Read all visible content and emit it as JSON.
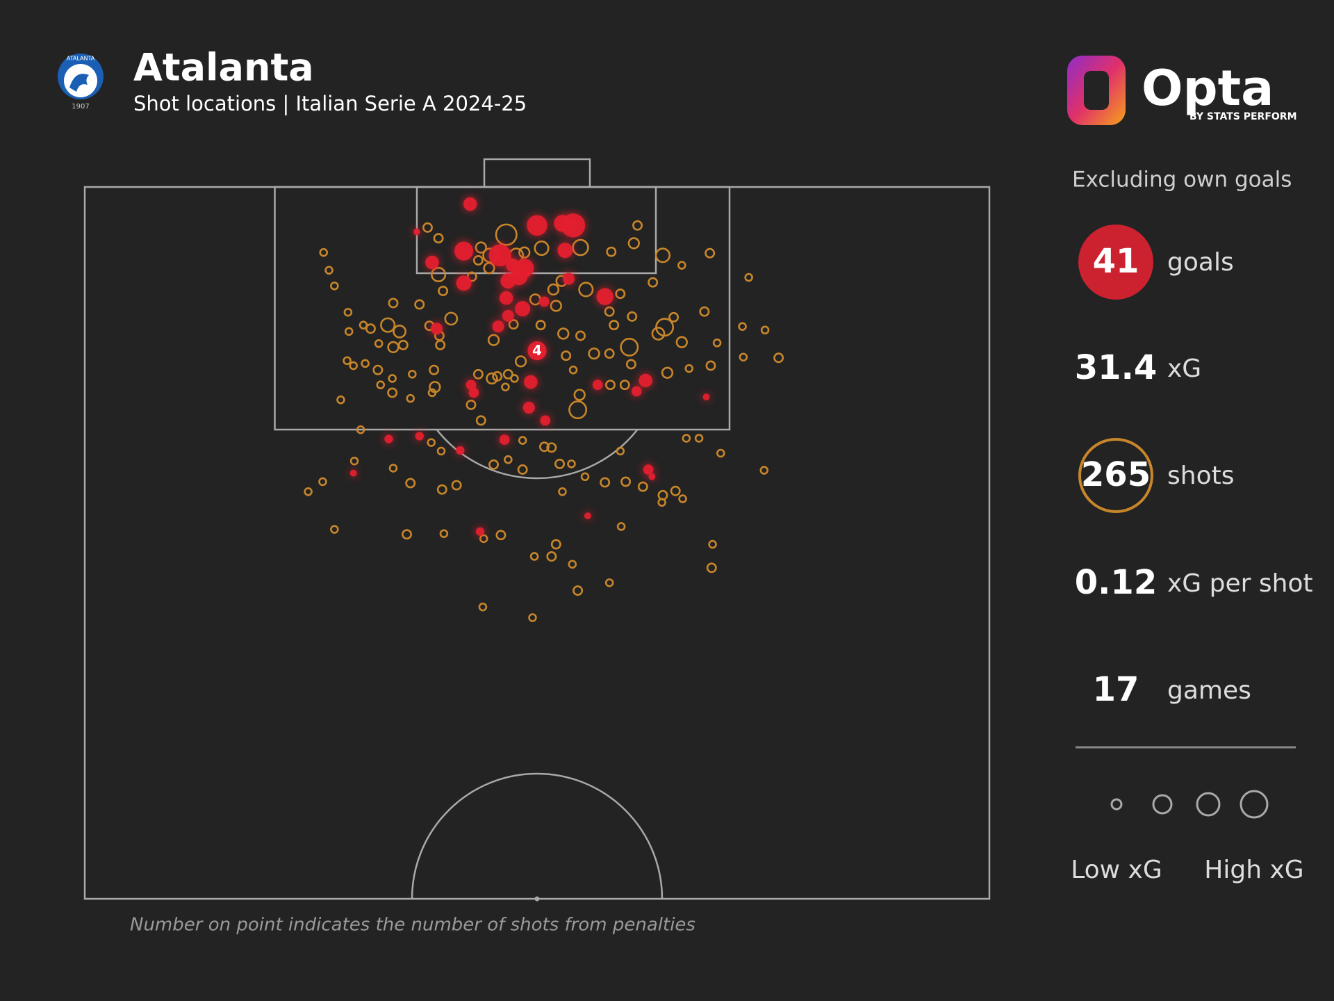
{
  "header": {
    "title": "Atalanta",
    "subtitle": "Shot locations | Italian Serie A 2024-25"
  },
  "badge": {
    "name": "ATALANTA",
    "year": "1907"
  },
  "brand": {
    "name": "Opta",
    "tagline": "BY STATS PERFORM"
  },
  "stats": {
    "note": "Excluding own goals",
    "items": [
      {
        "value": 41,
        "label": "goals"
      },
      {
        "value": 31.4,
        "label": "xG"
      },
      {
        "value": 265,
        "label": "shots"
      },
      {
        "value": 0.12,
        "label": "xG per shot"
      },
      {
        "value": 17,
        "label": "games"
      }
    ]
  },
  "legend": {
    "low": "Low xG",
    "high": "High xG"
  },
  "footnote": "Number on point indicates the number of shots from penalties",
  "chart_data": {
    "type": "scatter",
    "xlim": [
      0,
      100
    ],
    "ylim": [
      0,
      100
    ],
    "series": [
      {
        "color": "#c8862a",
        "x": [
          26.4,
          27.0,
          27.6,
          37.9,
          39.1,
          61.1,
          60.7,
          58.2,
          46.6,
          43.8,
          44.8,
          47.7,
          48.6,
          50.5,
          54.8,
          63.9,
          66.0,
          69.1,
          73.4,
          62.8,
          39.1,
          39.6,
          42.8,
          43.5,
          44.7,
          49.8,
          51.8,
          55.4,
          52.7,
          59.2,
          52.1,
          34.1,
          37.0,
          40.5,
          29.1,
          30.8,
          29.2,
          31.6,
          33.5,
          34.8,
          32.5,
          34.1,
          35.2,
          38.1,
          39.3,
          39.2,
          45.2,
          47.4,
          50.4,
          52.9,
          54.8,
          58.0,
          60.5,
          58.5,
          63.4,
          64.1,
          65.1,
          66.0,
          60.2,
          60.4,
          58.0,
          56.3,
          53.2,
          48.2,
          46.8,
          46.5,
          45.0,
          43.5,
          45.6,
          47.5,
          54.0,
          54.7,
          54.5,
          58.1,
          59.7,
          64.4,
          66.8,
          69.2,
          68.5,
          69.9,
          72.7,
          75.2,
          72.8,
          76.7,
          29.0,
          29.7,
          31.0,
          32.4,
          32.7,
          34.0,
          34.0,
          36.2,
          38.6,
          38.7,
          38.4,
          36.0,
          28.3,
          30.5,
          42.7,
          43.8,
          48.4,
          50.8,
          51.6,
          45.2,
          46.8,
          48.4,
          39.4,
          38.3,
          34.1,
          36.0,
          39.5,
          41.1,
          29.8,
          26.3,
          24.7,
          52.5,
          53.8,
          52.8,
          55.3,
          57.5,
          59.8,
          61.7,
          63.9,
          65.3,
          63.8,
          66.1,
          66.5,
          67.9,
          70.3,
          75.1,
          59.2,
          27.6,
          35.6,
          39.7,
          44.1,
          46.0,
          52.1,
          51.6,
          49.7,
          53.9,
          59.3,
          69.4,
          69.3,
          58.0,
          54.5,
          44.0,
          49.5
        ],
        "values": [
          9.2,
          11.7,
          13.9,
          5.7,
          7.2,
          5.4,
          7.9,
          9.1,
          6.7,
          8.5,
          9.6,
          9.6,
          9.2,
          8.6,
          8.5,
          9.6,
          11.0,
          9.3,
          12.7,
          13.4,
          12.3,
          14.6,
          12.6,
          10.3,
          11.4,
          15.8,
          14.4,
          14.4,
          13.2,
          15.0,
          16.7,
          16.3,
          16.5,
          18.5,
          17.6,
          19.4,
          20.3,
          19.9,
          19.4,
          20.3,
          22.0,
          22.5,
          22.2,
          19.5,
          22.2,
          20.9,
          21.5,
          19.3,
          19.4,
          20.6,
          20.9,
          17.5,
          18.2,
          19.4,
          20.6,
          19.7,
          18.3,
          21.8,
          22.5,
          24.9,
          23.4,
          23.4,
          23.7,
          24.5,
          26.3,
          28.1,
          26.9,
          26.3,
          26.6,
          26.9,
          25.7,
          29.2,
          31.3,
          27.8,
          27.8,
          26.1,
          25.5,
          25.1,
          17.5,
          21.9,
          19.6,
          20.1,
          23.9,
          24.0,
          24.4,
          25.1,
          24.8,
          25.7,
          27.8,
          26.9,
          28.9,
          26.3,
          25.7,
          28.1,
          28.9,
          29.7,
          29.9,
          34.1,
          30.6,
          32.8,
          35.6,
          36.5,
          36.6,
          39.0,
          38.3,
          39.7,
          37.1,
          35.9,
          39.5,
          41.6,
          42.5,
          41.9,
          38.5,
          41.4,
          42.8,
          38.9,
          38.9,
          42.8,
          40.7,
          41.5,
          41.4,
          42.1,
          43.3,
          42.7,
          44.3,
          43.8,
          35.3,
          35.3,
          37.4,
          39.8,
          37.1,
          48.1,
          48.8,
          48.7,
          49.4,
          48.9,
          50.2,
          51.9,
          51.9,
          53.0,
          47.7,
          50.2,
          53.5,
          55.6,
          56.7,
          59.0,
          60.5
        ],
        "sizes": [
          0.04,
          0.04,
          0.04,
          0.11,
          0.11,
          0.11,
          0.18,
          0.11,
          0.61,
          0.18,
          0.32,
          0.32,
          0.18,
          0.32,
          0.39,
          0.32,
          0.04,
          0.11,
          0.04,
          0.11,
          0.32,
          0.11,
          0.11,
          0.11,
          0.18,
          0.18,
          0.18,
          0.32,
          0.18,
          0.11,
          0.18,
          0.11,
          0.11,
          0.25,
          0.04,
          0.04,
          0.04,
          0.11,
          0.32,
          0.25,
          0.04,
          0.18,
          0.11,
          0.11,
          0.11,
          0.11,
          0.18,
          0.11,
          0.11,
          0.18,
          0.11,
          0.11,
          0.11,
          0.11,
          0.25,
          0.46,
          0.11,
          0.18,
          0.46,
          0.11,
          0.11,
          0.18,
          0.11,
          0.18,
          0.11,
          0.04,
          0.18,
          0.11,
          0.11,
          0.04,
          0.04,
          0.18,
          0.46,
          0.11,
          0.11,
          0.18,
          0.04,
          0.11,
          0.11,
          0.04,
          0.04,
          0.04,
          0.04,
          0.11,
          0.04,
          0.04,
          0.04,
          0.11,
          0.04,
          0.04,
          0.11,
          0.04,
          0.11,
          0.18,
          0.04,
          0.04,
          0.04,
          0.04,
          0.11,
          0.11,
          0.04,
          0.11,
          0.11,
          0.11,
          0.04,
          0.11,
          0.04,
          0.04,
          0.04,
          0.11,
          0.11,
          0.11,
          0.04,
          0.04,
          0.04,
          0.11,
          0.04,
          0.04,
          0.04,
          0.11,
          0.11,
          0.11,
          0.11,
          0.11,
          0.04,
          0.04,
          0.04,
          0.04,
          0.04,
          0.04,
          0.04,
          0.04,
          0.11,
          0.04,
          0.04,
          0.11,
          0.11,
          0.11,
          0.04,
          0.04,
          0.04,
          0.04,
          0.11,
          0.04,
          0.11,
          0.04,
          0.04
        ]
      },
      {
        "color": "#e3202f",
        "x": [
          42.6,
          50.0,
          52.8,
          54.0,
          36.7,
          41.9,
          45.9,
          53.1,
          38.4,
          48.6,
          41.9,
          46.8,
          48.0,
          53.5,
          57.5,
          46.6,
          50.8,
          48.4,
          46.8,
          45.7,
          38.9,
          49.3,
          42.7,
          43.0,
          56.7,
          62.0,
          61.0,
          68.7,
          49.1,
          50.9,
          33.6,
          37.0,
          46.4,
          41.5,
          29.7,
          62.3,
          55.6,
          43.7,
          62.7,
          47.3
        ],
        "values": [
          2.4,
          5.4,
          5.1,
          5.4,
          6.3,
          9.0,
          9.6,
          8.9,
          10.6,
          11.4,
          13.5,
          13.2,
          12.6,
          12.9,
          15.4,
          15.6,
          16.1,
          17.1,
          18.1,
          19.6,
          19.9,
          27.4,
          27.8,
          28.9,
          27.8,
          27.2,
          28.7,
          29.5,
          31.0,
          32.8,
          35.4,
          35.0,
          35.5,
          37.0,
          40.2,
          39.7,
          46.2,
          48.4,
          40.7,
          11.0
        ],
        "sizes": [
          0.32,
          0.61,
          0.46,
          0.75,
          0.04,
          0.54,
          0.68,
          0.39,
          0.32,
          0.54,
          0.39,
          0.39,
          0.46,
          0.25,
          0.46,
          0.32,
          0.18,
          0.39,
          0.25,
          0.25,
          0.25,
          0.32,
          0.18,
          0.18,
          0.18,
          0.32,
          0.18,
          0.04,
          0.25,
          0.18,
          0.11,
          0.11,
          0.18,
          0.11,
          0.04,
          0.18,
          0.04,
          0.11,
          0.04,
          0.32
        ]
      }
    ],
    "penalty": {
      "x": 50.0,
      "y": 23.0,
      "xg": 0.54,
      "count": 4,
      "color": "#e3202f"
    }
  }
}
